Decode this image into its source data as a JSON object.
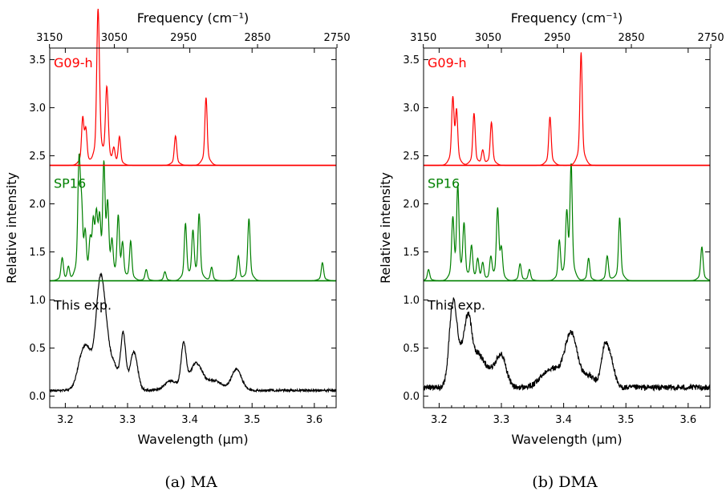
{
  "colors": {
    "g09": "#ff0000",
    "sp16": "#008000",
    "exp": "#000000",
    "axis": "#000000"
  },
  "chart_data": [
    {
      "type": "line",
      "caption": "(a) MA",
      "xlabel": "Wavelength (μm)",
      "ylabel": "Relative intensity",
      "top_axis_label": "Frequency (cm⁻¹)",
      "top_ticks": [
        "3150",
        "3050",
        "2950",
        "2850",
        "2750"
      ],
      "top_tick_values": [
        3150,
        3050,
        2950,
        2850,
        2750
      ],
      "xticks": [
        "3.2",
        "3.3",
        "3.4",
        "3.5",
        "3.6"
      ],
      "xtick_values": [
        3.2,
        3.3,
        3.4,
        3.5,
        3.6
      ],
      "xlim": [
        3.175,
        3.635
      ],
      "yticks": [
        "0.0",
        "0.5",
        "1.0",
        "1.5",
        "2.0",
        "2.5",
        "3.0",
        "3.5"
      ],
      "ytick_values": [
        0.0,
        0.5,
        1.0,
        1.5,
        2.0,
        2.5,
        3.0,
        3.5
      ],
      "ylim": [
        -0.12,
        3.62
      ],
      "dividers": [
        1.2,
        2.4
      ],
      "panels": [
        {
          "label": "G09-h",
          "color": "g09",
          "baseline": 2.4,
          "peaks": [
            [
              3.228,
              0.4
            ],
            [
              3.233,
              0.29
            ],
            [
              3.252,
              1.0
            ],
            [
              3.254,
              0.55
            ],
            [
              3.266,
              0.47
            ],
            [
              3.268,
              0.3
            ],
            [
              3.278,
              0.13
            ],
            [
              3.287,
              0.25
            ],
            [
              3.377,
              0.26
            ],
            [
              3.426,
              0.6
            ]
          ]
        },
        {
          "label": "SP16",
          "color": "sp16",
          "baseline": 1.2,
          "peaks": [
            [
              3.195,
              0.2
            ],
            [
              3.205,
              0.12
            ],
            [
              3.222,
              1.0
            ],
            [
              3.226,
              0.55
            ],
            [
              3.232,
              0.35
            ],
            [
              3.24,
              0.3
            ],
            [
              3.245,
              0.45
            ],
            [
              3.25,
              0.5
            ],
            [
              3.255,
              0.45
            ],
            [
              3.262,
              0.96
            ],
            [
              3.268,
              0.6
            ],
            [
              3.275,
              0.3
            ],
            [
              3.285,
              0.55
            ],
            [
              3.292,
              0.3
            ],
            [
              3.305,
              0.35
            ],
            [
              3.33,
              0.1
            ],
            [
              3.36,
              0.08
            ],
            [
              3.393,
              0.5
            ],
            [
              3.405,
              0.42
            ],
            [
              3.415,
              0.58
            ],
            [
              3.435,
              0.12
            ],
            [
              3.478,
              0.22
            ],
            [
              3.495,
              0.55
            ],
            [
              3.613,
              0.16
            ]
          ]
        },
        {
          "label": "This exp.",
          "color": "exp",
          "baseline": 0.0,
          "bands": [
            [
              3.228,
              0.38,
              0.008
            ],
            [
              3.238,
              0.22,
              0.006
            ],
            [
              3.255,
              0.88,
              0.007
            ],
            [
              3.264,
              0.52,
              0.008
            ],
            [
              3.28,
              0.2,
              0.006
            ],
            [
              3.293,
              0.58,
              0.004
            ],
            [
              3.31,
              0.4,
              0.006
            ],
            [
              3.37,
              0.1,
              0.01
            ],
            [
              3.39,
              0.45,
              0.004
            ],
            [
              3.41,
              0.28,
              0.01
            ],
            [
              3.44,
              0.1,
              0.012
            ],
            [
              3.475,
              0.22,
              0.008
            ]
          ],
          "background": 0.06,
          "noise": 0.012
        }
      ]
    },
    {
      "type": "line",
      "caption": "(b) DMA",
      "xlabel": "Wavelength (μm)",
      "ylabel": "Relative intensity",
      "top_axis_label": "Frequency (cm⁻¹)",
      "top_ticks": [
        "3150",
        "3050",
        "2950",
        "2850",
        "2750"
      ],
      "top_tick_values": [
        3150,
        3050,
        2950,
        2850,
        2750
      ],
      "xticks": [
        "3.2",
        "3.3",
        "3.4",
        "3.5",
        "3.6"
      ],
      "xtick_values": [
        3.2,
        3.3,
        3.4,
        3.5,
        3.6
      ],
      "xlim": [
        3.175,
        3.635
      ],
      "yticks": [
        "0.0",
        "0.5",
        "1.0",
        "1.5",
        "2.0",
        "2.5",
        "3.0",
        "3.5"
      ],
      "ytick_values": [
        0.0,
        0.5,
        1.0,
        1.5,
        2.0,
        2.5,
        3.0,
        3.5
      ],
      "ylim": [
        -0.12,
        3.62
      ],
      "dividers": [
        1.2,
        2.4
      ],
      "panels": [
        {
          "label": "G09-h",
          "color": "g09",
          "baseline": 2.4,
          "peaks": [
            [
              3.222,
              0.57
            ],
            [
              3.228,
              0.45
            ],
            [
              3.256,
              0.46
            ],
            [
              3.27,
              0.13
            ],
            [
              3.284,
              0.38
            ],
            [
              3.378,
              0.43
            ],
            [
              3.428,
              1.0
            ]
          ]
        },
        {
          "label": "SP16",
          "color": "sp16",
          "baseline": 1.2,
          "peaks": [
            [
              3.183,
              0.1
            ],
            [
              3.222,
              0.52
            ],
            [
              3.23,
              0.8
            ],
            [
              3.24,
              0.48
            ],
            [
              3.252,
              0.3
            ],
            [
              3.262,
              0.18
            ],
            [
              3.27,
              0.15
            ],
            [
              3.283,
              0.2
            ],
            [
              3.294,
              0.62
            ],
            [
              3.3,
              0.25
            ],
            [
              3.33,
              0.15
            ],
            [
              3.345,
              0.1
            ],
            [
              3.393,
              0.35
            ],
            [
              3.405,
              0.55
            ],
            [
              3.412,
              1.0
            ],
            [
              3.44,
              0.2
            ],
            [
              3.47,
              0.22
            ],
            [
              3.49,
              0.56
            ],
            [
              3.622,
              0.3
            ]
          ]
        },
        {
          "label": "This exp.",
          "color": "exp",
          "baseline": 0.0,
          "bands": [
            [
              3.222,
              0.82,
              0.006
            ],
            [
              3.235,
              0.3,
              0.008
            ],
            [
              3.247,
              0.62,
              0.006
            ],
            [
              3.262,
              0.3,
              0.008
            ],
            [
              3.28,
              0.18,
              0.01
            ],
            [
              3.3,
              0.32,
              0.008
            ],
            [
              3.38,
              0.2,
              0.015
            ],
            [
              3.412,
              0.55,
              0.01
            ],
            [
              3.44,
              0.12,
              0.01
            ],
            [
              3.467,
              0.45,
              0.006
            ],
            [
              3.478,
              0.2,
              0.005
            ]
          ],
          "background": 0.09,
          "noise": 0.03
        }
      ]
    }
  ]
}
